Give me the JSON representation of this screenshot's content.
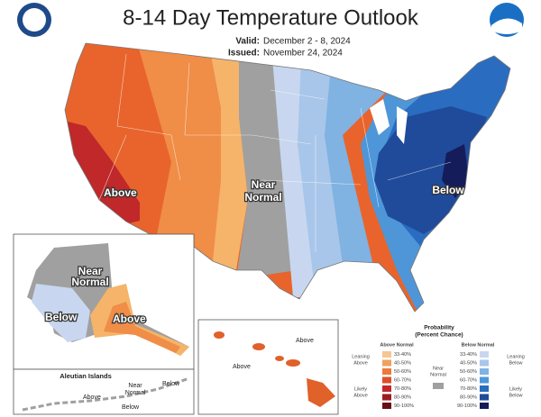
{
  "header": {
    "title": "8-14 Day Temperature Outlook",
    "valid_label": "Valid:",
    "valid": "December 2 - 8, 2024",
    "issued_label": "Issued:",
    "issued": "November 24, 2024"
  },
  "conus": {
    "above": "Above",
    "near_normal": [
      "Near",
      "Normal"
    ],
    "below": "Below"
  },
  "alaska": {
    "near_normal": [
      "Near",
      "Normal"
    ],
    "below": "Below",
    "above": "Above"
  },
  "aleutian": {
    "title": "Aleutian Islands",
    "above": "Above",
    "near_normal": [
      "Near",
      "Normal"
    ],
    "below_1": "Below",
    "below_2": "Below"
  },
  "hawaii": {
    "above_1": "Above",
    "above_2": "Above"
  },
  "legend": {
    "title": [
      "Probability",
      "(Percent Chance)"
    ],
    "above_heading": "Above Normal",
    "below_heading": "Below Normal",
    "bins": [
      "33-40%",
      "40-50%",
      "50-60%",
      "60-70%",
      "70-80%",
      "80-90%",
      "90-100%"
    ],
    "above_colors": [
      "#f5c792",
      "#f0a25d",
      "#ea7a3d",
      "#dc4f2a",
      "#c0282a",
      "#9a1c22",
      "#6a0f15"
    ],
    "below_colors": [
      "#c8d7ef",
      "#a8c6ea",
      "#80b2e2",
      "#4e96d8",
      "#2a6cc0",
      "#1f4b9a",
      "#151c5a"
    ],
    "near_color": "#a0a0a0",
    "leaning_above": [
      "Leaning",
      "Above"
    ],
    "likely_above": [
      "Likely",
      "Above"
    ],
    "near_normal": [
      "Near",
      "Normal"
    ],
    "leaning_below": [
      "Leaning",
      "Below"
    ],
    "likely_below": [
      "Likely",
      "Below"
    ]
  }
}
